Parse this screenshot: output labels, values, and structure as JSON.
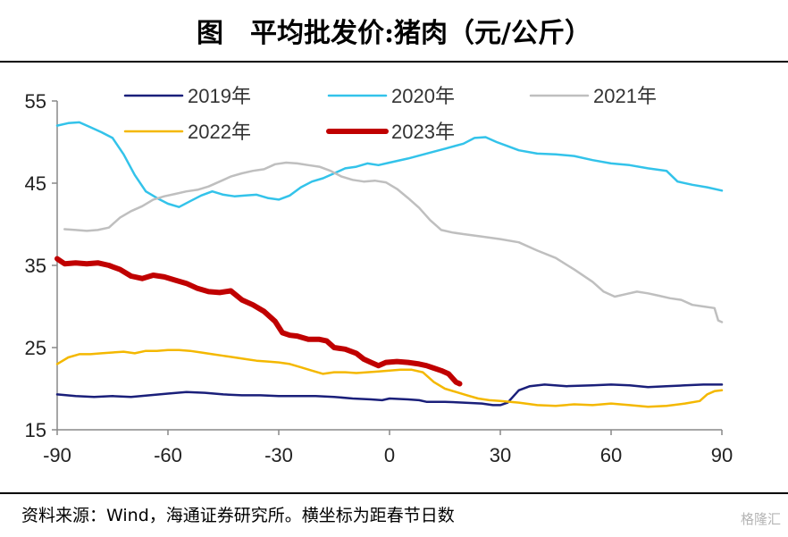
{
  "title": "图　平均批发价:猪肉（元/公斤）",
  "source": "资料来源：Wind，海通证券研究所。横坐标为距春节日数",
  "watermark": "格隆汇",
  "chart_data": {
    "type": "line",
    "title": "图　平均批发价:猪肉（元/公斤）",
    "xlabel": "",
    "ylabel": "",
    "xlim": [
      -90,
      90
    ],
    "ylim": [
      15,
      55
    ],
    "xticks": [
      -90,
      -60,
      -30,
      0,
      30,
      60,
      90
    ],
    "yticks": [
      15,
      25,
      35,
      45,
      55
    ],
    "grid": false,
    "legend_position": "top",
    "series": [
      {
        "name": "2019年",
        "color": "#1a1f7a",
        "width": 2.5,
        "points": [
          [
            -90,
            19.3
          ],
          [
            -85,
            19.1
          ],
          [
            -80,
            19.0
          ],
          [
            -75,
            19.1
          ],
          [
            -70,
            19.0
          ],
          [
            -65,
            19.2
          ],
          [
            -60,
            19.4
          ],
          [
            -55,
            19.6
          ],
          [
            -50,
            19.5
          ],
          [
            -45,
            19.3
          ],
          [
            -40,
            19.2
          ],
          [
            -35,
            19.2
          ],
          [
            -30,
            19.1
          ],
          [
            -25,
            19.1
          ],
          [
            -20,
            19.1
          ],
          [
            -15,
            19.0
          ],
          [
            -10,
            18.8
          ],
          [
            -5,
            18.7
          ],
          [
            -2,
            18.6
          ],
          [
            0,
            18.8
          ],
          [
            5,
            18.7
          ],
          [
            8,
            18.6
          ],
          [
            10,
            18.4
          ],
          [
            15,
            18.4
          ],
          [
            20,
            18.3
          ],
          [
            25,
            18.2
          ],
          [
            28,
            18.0
          ],
          [
            30,
            18.0
          ],
          [
            32,
            18.3
          ],
          [
            35,
            19.8
          ],
          [
            38,
            20.3
          ],
          [
            42,
            20.5
          ],
          [
            48,
            20.3
          ],
          [
            55,
            20.4
          ],
          [
            60,
            20.5
          ],
          [
            65,
            20.4
          ],
          [
            70,
            20.2
          ],
          [
            75,
            20.3
          ],
          [
            80,
            20.4
          ],
          [
            85,
            20.5
          ],
          [
            90,
            20.5
          ]
        ]
      },
      {
        "name": "2020年",
        "color": "#33c3ea",
        "width": 2.5,
        "points": [
          [
            -90,
            52.0
          ],
          [
            -87,
            52.3
          ],
          [
            -84,
            52.4
          ],
          [
            -81,
            51.8
          ],
          [
            -78,
            51.2
          ],
          [
            -75,
            50.5
          ],
          [
            -72,
            48.5
          ],
          [
            -69,
            46.0
          ],
          [
            -66,
            44.0
          ],
          [
            -63,
            43.2
          ],
          [
            -60,
            42.5
          ],
          [
            -57,
            42.1
          ],
          [
            -54,
            42.8
          ],
          [
            -51,
            43.5
          ],
          [
            -48,
            44.0
          ],
          [
            -45,
            43.6
          ],
          [
            -42,
            43.4
          ],
          [
            -39,
            43.5
          ],
          [
            -36,
            43.6
          ],
          [
            -33,
            43.2
          ],
          [
            -30,
            43.0
          ],
          [
            -27,
            43.5
          ],
          [
            -24,
            44.5
          ],
          [
            -21,
            45.2
          ],
          [
            -18,
            45.6
          ],
          [
            -15,
            46.2
          ],
          [
            -12,
            46.8
          ],
          [
            -9,
            47.0
          ],
          [
            -6,
            47.4
          ],
          [
            -3,
            47.2
          ],
          [
            0,
            47.5
          ],
          [
            5,
            48.0
          ],
          [
            10,
            48.6
          ],
          [
            15,
            49.2
          ],
          [
            20,
            49.8
          ],
          [
            23,
            50.5
          ],
          [
            26,
            50.6
          ],
          [
            29,
            50.0
          ],
          [
            32,
            49.5
          ],
          [
            35,
            49.0
          ],
          [
            40,
            48.6
          ],
          [
            45,
            48.5
          ],
          [
            50,
            48.3
          ],
          [
            55,
            47.8
          ],
          [
            60,
            47.4
          ],
          [
            65,
            47.2
          ],
          [
            70,
            46.8
          ],
          [
            75,
            46.5
          ],
          [
            78,
            45.2
          ],
          [
            82,
            44.8
          ],
          [
            86,
            44.5
          ],
          [
            90,
            44.1
          ]
        ]
      },
      {
        "name": "2021年",
        "color": "#bfbfbf",
        "width": 2.5,
        "points": [
          [
            -88,
            39.4
          ],
          [
            -85,
            39.3
          ],
          [
            -82,
            39.2
          ],
          [
            -79,
            39.3
          ],
          [
            -76,
            39.6
          ],
          [
            -73,
            40.8
          ],
          [
            -70,
            41.6
          ],
          [
            -67,
            42.2
          ],
          [
            -64,
            43.0
          ],
          [
            -61,
            43.4
          ],
          [
            -58,
            43.7
          ],
          [
            -55,
            44.0
          ],
          [
            -52,
            44.2
          ],
          [
            -49,
            44.6
          ],
          [
            -46,
            45.2
          ],
          [
            -43,
            45.8
          ],
          [
            -40,
            46.2
          ],
          [
            -37,
            46.5
          ],
          [
            -34,
            46.7
          ],
          [
            -31,
            47.3
          ],
          [
            -28,
            47.5
          ],
          [
            -25,
            47.4
          ],
          [
            -22,
            47.2
          ],
          [
            -19,
            47.0
          ],
          [
            -16,
            46.5
          ],
          [
            -13,
            45.8
          ],
          [
            -10,
            45.4
          ],
          [
            -7,
            45.2
          ],
          [
            -4,
            45.3
          ],
          [
            -1,
            45.1
          ],
          [
            2,
            44.3
          ],
          [
            5,
            43.2
          ],
          [
            8,
            42.0
          ],
          [
            11,
            40.5
          ],
          [
            14,
            39.3
          ],
          [
            17,
            39.0
          ],
          [
            20,
            38.8
          ],
          [
            25,
            38.5
          ],
          [
            30,
            38.2
          ],
          [
            35,
            37.8
          ],
          [
            40,
            36.8
          ],
          [
            45,
            35.9
          ],
          [
            50,
            34.5
          ],
          [
            55,
            33.0
          ],
          [
            58,
            31.8
          ],
          [
            61,
            31.2
          ],
          [
            64,
            31.5
          ],
          [
            67,
            31.8
          ],
          [
            70,
            31.6
          ],
          [
            73,
            31.3
          ],
          [
            76,
            31.0
          ],
          [
            79,
            30.8
          ],
          [
            82,
            30.2
          ],
          [
            85,
            30.0
          ],
          [
            88,
            29.8
          ],
          [
            89,
            28.3
          ],
          [
            90,
            28.1
          ]
        ]
      },
      {
        "name": "2022年",
        "color": "#f4b800",
        "width": 2.5,
        "points": [
          [
            -90,
            23.0
          ],
          [
            -87,
            23.8
          ],
          [
            -84,
            24.2
          ],
          [
            -81,
            24.2
          ],
          [
            -78,
            24.3
          ],
          [
            -75,
            24.4
          ],
          [
            -72,
            24.5
          ],
          [
            -69,
            24.3
          ],
          [
            -66,
            24.6
          ],
          [
            -63,
            24.6
          ],
          [
            -60,
            24.7
          ],
          [
            -57,
            24.7
          ],
          [
            -54,
            24.6
          ],
          [
            -51,
            24.4
          ],
          [
            -48,
            24.2
          ],
          [
            -45,
            24.0
          ],
          [
            -42,
            23.8
          ],
          [
            -39,
            23.6
          ],
          [
            -36,
            23.4
          ],
          [
            -33,
            23.3
          ],
          [
            -30,
            23.2
          ],
          [
            -27,
            23.0
          ],
          [
            -24,
            22.6
          ],
          [
            -21,
            22.2
          ],
          [
            -18,
            21.8
          ],
          [
            -15,
            22.0
          ],
          [
            -12,
            22.0
          ],
          [
            -9,
            21.9
          ],
          [
            -6,
            22.0
          ],
          [
            -3,
            22.1
          ],
          [
            0,
            22.2
          ],
          [
            3,
            22.3
          ],
          [
            6,
            22.3
          ],
          [
            9,
            22.0
          ],
          [
            12,
            20.8
          ],
          [
            15,
            20.0
          ],
          [
            18,
            19.6
          ],
          [
            21,
            19.2
          ],
          [
            24,
            18.8
          ],
          [
            27,
            18.6
          ],
          [
            30,
            18.5
          ],
          [
            35,
            18.3
          ],
          [
            40,
            18.0
          ],
          [
            45,
            17.9
          ],
          [
            50,
            18.1
          ],
          [
            55,
            18.0
          ],
          [
            60,
            18.2
          ],
          [
            65,
            18.0
          ],
          [
            70,
            17.8
          ],
          [
            75,
            17.9
          ],
          [
            80,
            18.2
          ],
          [
            84,
            18.5
          ],
          [
            86,
            19.3
          ],
          [
            88,
            19.7
          ],
          [
            90,
            19.8
          ]
        ]
      },
      {
        "name": "2023年",
        "color": "#c00000",
        "width": 6,
        "points": [
          [
            -90,
            35.8
          ],
          [
            -88,
            35.2
          ],
          [
            -85,
            35.3
          ],
          [
            -82,
            35.2
          ],
          [
            -79,
            35.3
          ],
          [
            -76,
            35.0
          ],
          [
            -73,
            34.5
          ],
          [
            -70,
            33.7
          ],
          [
            -67,
            33.4
          ],
          [
            -64,
            33.8
          ],
          [
            -61,
            33.6
          ],
          [
            -58,
            33.2
          ],
          [
            -55,
            32.8
          ],
          [
            -52,
            32.2
          ],
          [
            -49,
            31.8
          ],
          [
            -46,
            31.7
          ],
          [
            -43,
            31.9
          ],
          [
            -40,
            30.8
          ],
          [
            -37,
            30.2
          ],
          [
            -34,
            29.4
          ],
          [
            -31,
            28.2
          ],
          [
            -29,
            26.8
          ],
          [
            -27,
            26.5
          ],
          [
            -25,
            26.4
          ],
          [
            -22,
            26.0
          ],
          [
            -19,
            26.0
          ],
          [
            -17,
            25.8
          ],
          [
            -15,
            25.0
          ],
          [
            -12,
            24.8
          ],
          [
            -9,
            24.3
          ],
          [
            -7,
            23.6
          ],
          [
            -5,
            23.2
          ],
          [
            -3,
            22.8
          ],
          [
            -1,
            23.2
          ],
          [
            2,
            23.3
          ],
          [
            5,
            23.2
          ],
          [
            8,
            23.0
          ],
          [
            10,
            22.8
          ],
          [
            12,
            22.5
          ],
          [
            14,
            22.2
          ],
          [
            16,
            21.8
          ],
          [
            18,
            20.8
          ],
          [
            19,
            20.6
          ]
        ]
      }
    ],
    "legend": [
      {
        "label": "2019年",
        "series": 0
      },
      {
        "label": "2020年",
        "series": 1
      },
      {
        "label": "2021年",
        "series": 2
      },
      {
        "label": "2022年",
        "series": 3
      },
      {
        "label": "2023年",
        "series": 4
      }
    ]
  }
}
